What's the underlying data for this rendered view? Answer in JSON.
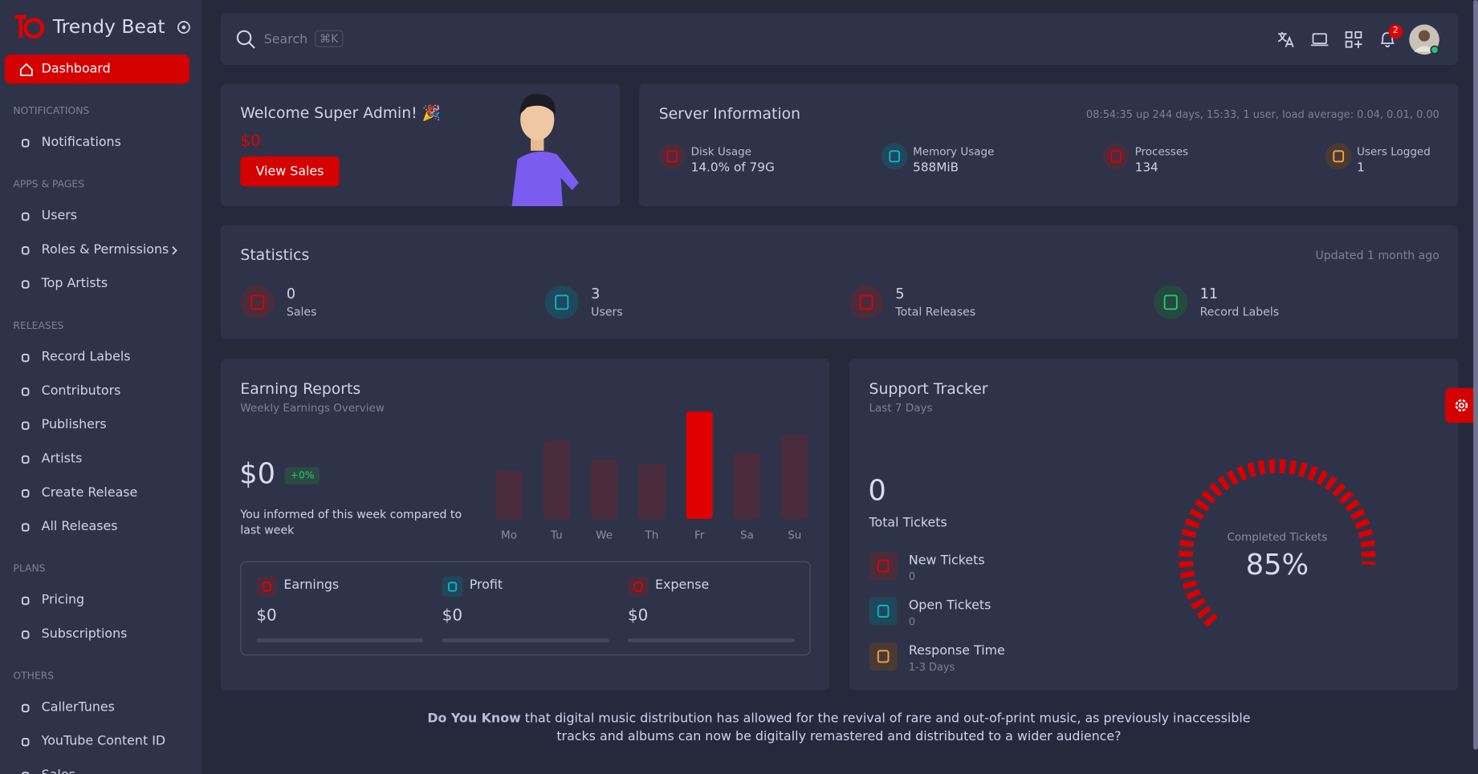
{
  "brand": "Trendy Beat",
  "sidebar": {
    "active": "Dashboard",
    "sections": [
      {
        "title": "NOTIFICATIONS",
        "items": [
          "Notifications"
        ]
      },
      {
        "title": "APPS & PAGES",
        "items": [
          "Users",
          "Roles & Permissions",
          "Top Artists"
        ]
      },
      {
        "title": "RELEASES",
        "items": [
          "Record Labels",
          "Contributors",
          "Publishers",
          "Artists",
          "Create Release",
          "All Releases"
        ]
      },
      {
        "title": "PLANS",
        "items": [
          "Pricing",
          "Subscriptions"
        ]
      },
      {
        "title": "OTHERS",
        "items": [
          "CallerTunes",
          "YouTube Content ID",
          "Sales"
        ]
      }
    ]
  },
  "search": {
    "placeholder": "Search",
    "shortcut": "⌘K"
  },
  "notification_count": 2,
  "welcome": {
    "title": "Welcome Super Admin! 🎉",
    "amount": "$0",
    "button": "View Sales"
  },
  "server": {
    "title": "Server Information",
    "uptime": "08:54:35 up 244 days, 15:33, 1 user, load average: 0.04, 0.01, 0.00",
    "items": [
      {
        "label": "Disk Usage",
        "value": "14.0% of 79G"
      },
      {
        "label": "Memory Usage",
        "value": "588MiB"
      },
      {
        "label": "Processes",
        "value": "134"
      },
      {
        "label": "Users Logged",
        "value": "1"
      }
    ]
  },
  "statistics": {
    "title": "Statistics",
    "updated": "Updated 1 month ago",
    "items": [
      {
        "value": 0,
        "label": "Sales"
      },
      {
        "value": 3,
        "label": "Users"
      },
      {
        "value": 5,
        "label": "Total Releases"
      },
      {
        "value": 11,
        "label": "Record Labels"
      }
    ]
  },
  "earnings": {
    "title": "Earning Reports",
    "subtitle": "Weekly Earnings Overview",
    "amount": "$0",
    "change": "+0%",
    "note": "You informed of this week compared to last week",
    "breakdown": [
      {
        "label": "Earnings",
        "value": "$0"
      },
      {
        "label": "Profit",
        "value": "$0"
      },
      {
        "label": "Expense",
        "value": "$0"
      }
    ]
  },
  "support": {
    "title": "Support Tracker",
    "subtitle": "Last 7 Days",
    "total": 0,
    "total_label": "Total Tickets",
    "items": [
      {
        "label": "New Tickets",
        "value": "0"
      },
      {
        "label": "Open Tickets",
        "value": "0"
      },
      {
        "label": "Response Time",
        "value": "1-3 Days"
      }
    ]
  },
  "chart_data": [
    {
      "type": "bar",
      "categories": [
        "Mo",
        "Tu",
        "We",
        "Th",
        "Fr",
        "Sa",
        "Su"
      ],
      "values": [
        51,
        83,
        63,
        58,
        114,
        70,
        89
      ],
      "colors": [
        "#4a2c3d",
        "#4a2c3d",
        "#4a2c3d",
        "#4a2c3d",
        "#e00000",
        "#4a2c3d",
        "#4a2c3d"
      ]
    },
    {
      "type": "gauge",
      "title": "Completed Tickets",
      "values": [
        85
      ],
      "value_labels": [
        "85%"
      ],
      "color": "#d90000"
    }
  ],
  "footer": {
    "lead": "Do You Know",
    "text": " that digital music distribution has allowed for the revival of rare and out-of-print music, as previously inaccessible tracks and albums can now be digitally remastered and distributed to a wider audience?"
  }
}
